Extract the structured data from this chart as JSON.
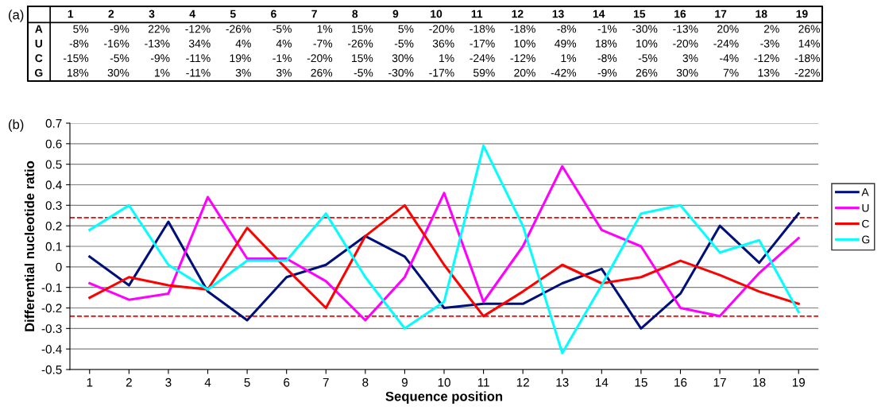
{
  "chart_data": {
    "type": "line",
    "xlabel": "Sequence position",
    "ylabel": "Differential nucleotide ratio",
    "categories": [
      "1",
      "2",
      "3",
      "4",
      "5",
      "6",
      "7",
      "8",
      "9",
      "10",
      "11",
      "12",
      "13",
      "14",
      "15",
      "16",
      "17",
      "18",
      "19"
    ],
    "series": [
      {
        "name": "A",
        "color": "#00107a",
        "values": [
          0.05,
          -0.09,
          0.22,
          -0.12,
          -0.26,
          -0.05,
          0.01,
          0.15,
          0.05,
          -0.2,
          -0.18,
          -0.18,
          -0.08,
          -0.01,
          -0.3,
          -0.13,
          0.2,
          0.02,
          0.26
        ],
        "value_labels": [
          "5%",
          "-9%",
          "22%",
          "-12%",
          "-26%",
          "-5%",
          "1%",
          "15%",
          "5%",
          "-20%",
          "-18%",
          "-18%",
          "-8%",
          "-1%",
          "-30%",
          "-13%",
          "20%",
          "2%",
          "26%"
        ]
      },
      {
        "name": "U",
        "color": "#ff00ff",
        "values": [
          -0.08,
          -0.16,
          -0.13,
          0.34,
          0.04,
          0.04,
          -0.07,
          -0.26,
          -0.05,
          0.36,
          -0.17,
          0.1,
          0.49,
          0.18,
          0.1,
          -0.2,
          -0.24,
          -0.03,
          0.14
        ],
        "value_labels": [
          "-8%",
          "-16%",
          "-13%",
          "34%",
          "4%",
          "4%",
          "-7%",
          "-26%",
          "-5%",
          "36%",
          "-17%",
          "10%",
          "49%",
          "18%",
          "10%",
          "-20%",
          "-24%",
          "-3%",
          "14%"
        ]
      },
      {
        "name": "C",
        "color": "#ff0000",
        "values": [
          -0.15,
          -0.05,
          -0.09,
          -0.11,
          0.19,
          -0.01,
          -0.2,
          0.15,
          0.3,
          0.01,
          -0.24,
          -0.12,
          0.01,
          -0.08,
          -0.05,
          0.03,
          -0.04,
          -0.12,
          -0.18
        ],
        "value_labels": [
          "-15%",
          "-5%",
          "-9%",
          "-11%",
          "19%",
          "-1%",
          "-20%",
          "15%",
          "30%",
          "1%",
          "-24%",
          "-12%",
          "1%",
          "-8%",
          "-5%",
          "3%",
          "-4%",
          "-12%",
          "-18%"
        ]
      },
      {
        "name": "G",
        "color": "#00ffff",
        "values": [
          0.18,
          0.3,
          0.01,
          -0.11,
          0.03,
          0.03,
          0.26,
          -0.05,
          -0.3,
          -0.17,
          0.59,
          0.2,
          -0.42,
          -0.09,
          0.26,
          0.3,
          0.07,
          0.13,
          -0.22
        ],
        "value_labels": [
          "18%",
          "30%",
          "1%",
          "-11%",
          "3%",
          "3%",
          "26%",
          "-5%",
          "-30%",
          "-17%",
          "59%",
          "20%",
          "-42%",
          "-9%",
          "26%",
          "30%",
          "7%",
          "13%",
          "-22%"
        ]
      }
    ],
    "ylim": [
      -0.5,
      0.7
    ],
    "yticks": [
      {
        "value": -0.5,
        "label": "-0.5"
      },
      {
        "value": -0.4,
        "label": "-0.4"
      },
      {
        "value": -0.3,
        "label": "-0.3"
      },
      {
        "value": -0.2,
        "label": "-0.2"
      },
      {
        "value": -0.1,
        "label": "-0.1"
      },
      {
        "value": 0,
        "label": "0"
      },
      {
        "value": 0.1,
        "label": "0.1"
      },
      {
        "value": 0.2,
        "label": "0.2"
      },
      {
        "value": 0.3,
        "label": "0.3"
      },
      {
        "value": 0.4,
        "label": "0.4"
      },
      {
        "value": 0.5,
        "label": "0.5"
      },
      {
        "value": 0.6,
        "label": "0.6"
      },
      {
        "value": 0.7,
        "label": "0.7"
      }
    ],
    "ref_lines": [
      {
        "axis": "y",
        "value": 0.24,
        "color": "#ff0000",
        "line_style": "dashed"
      },
      {
        "axis": "y",
        "value": -0.24,
        "color": "#ff0000",
        "line_style": "dashed"
      }
    ],
    "annotations": [
      "(a)",
      "(b)"
    ],
    "grid": "y",
    "legend": "right",
    "marker": "none",
    "line_style": "solid"
  }
}
